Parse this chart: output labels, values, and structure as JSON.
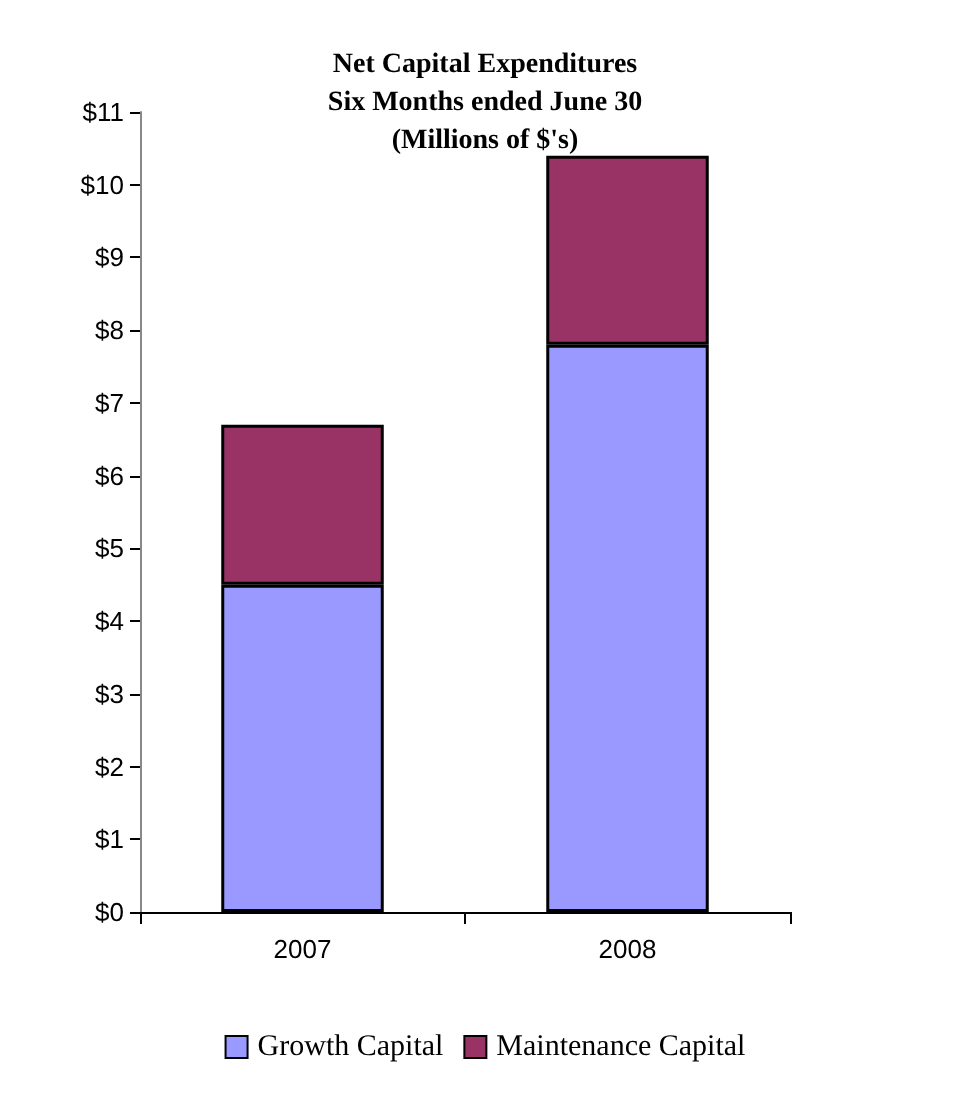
{
  "chart_data": {
    "type": "bar",
    "title": "Net Capital Expenditures\nSix Months ended June 30\n(Millions of $'s)",
    "categories": [
      "2007",
      "2008"
    ],
    "stacked": true,
    "legend": "bottom",
    "grid": false,
    "series": [
      {
        "name": "Growth Capital",
        "color": "#9999ff",
        "values": [
          4.5,
          7.8
        ]
      },
      {
        "name": "Maintenance Capital",
        "color": "#993366",
        "values": [
          2.2,
          2.6
        ]
      }
    ],
    "ylim": [
      0,
      11
    ],
    "yticks": [
      {
        "value": 0,
        "label": "$0"
      },
      {
        "value": 1,
        "label": "$1"
      },
      {
        "value": 2,
        "label": "$2"
      },
      {
        "value": 3,
        "label": "$3"
      },
      {
        "value": 4,
        "label": "$4"
      },
      {
        "value": 5,
        "label": "$5"
      },
      {
        "value": 6,
        "label": "$6"
      },
      {
        "value": 7,
        "label": "$7"
      },
      {
        "value": 8,
        "label": "$8"
      },
      {
        "value": 9,
        "label": "$9"
      },
      {
        "value": 10,
        "label": "$10"
      },
      {
        "value": 11,
        "label": "$11"
      }
    ]
  }
}
